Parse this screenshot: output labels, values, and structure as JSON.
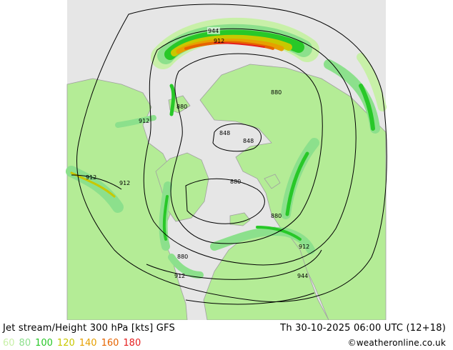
{
  "title": "Jet stream/Height 300 hPa [kts] GFS",
  "valid_time": "Th 30-10-2025 06:00 UTC (12+18)",
  "credit": "©weatheronline.co.uk",
  "legend": [
    {
      "label": "60",
      "color": "#c8f0a8"
    },
    {
      "label": "80",
      "color": "#8ce08c"
    },
    {
      "label": "100",
      "color": "#28c828"
    },
    {
      "label": "120",
      "color": "#c8c800"
    },
    {
      "label": "140",
      "color": "#e6a000"
    },
    {
      "label": "160",
      "color": "#e66400"
    },
    {
      "label": "180",
      "color": "#e61e1e"
    }
  ],
  "contour_labels": [
    "944",
    "912",
    "880",
    "912",
    "880",
    "848",
    "848",
    "912",
    "912",
    "880",
    "880",
    "880",
    "912",
    "912",
    "944"
  ],
  "colors": {
    "ocean": "#e6e6e6",
    "land": "#b4ec96",
    "border": "#a0a0a0",
    "contour": "#000000"
  }
}
